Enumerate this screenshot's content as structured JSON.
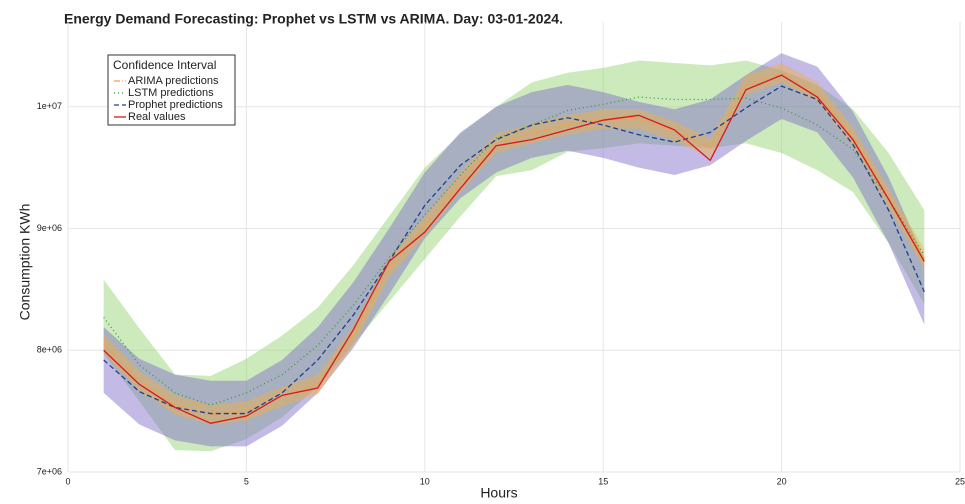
{
  "chart_data": {
    "type": "line",
    "title": "Energy Demand Forecasting: Prophet vs LSTM vs ARIMA. Day: 03-01-2024.",
    "x_label": "Hours",
    "y_label": "Consumption KWh",
    "legend_title": "Confidence Interval",
    "legend": "top-left",
    "grid": true,
    "xlim": [
      0,
      25
    ],
    "xticks": [
      0,
      5,
      10,
      15,
      20,
      25
    ],
    "ylim": [
      7000000,
      10450000
    ],
    "yticks": [
      {
        "value": 7000000,
        "label": "7e+06"
      },
      {
        "value": 8000000,
        "label": "8e+06"
      },
      {
        "value": 9000000,
        "label": "9e+06"
      },
      {
        "value": 10000000,
        "label": "1e+07"
      }
    ],
    "x": [
      1,
      2,
      3,
      4,
      5,
      6,
      7,
      8,
      9,
      10,
      11,
      12,
      13,
      14,
      15,
      16,
      17,
      18,
      19,
      20,
      21,
      22,
      23,
      24
    ],
    "series": [
      {
        "name": "ARIMA predictions",
        "color": "#f0a050",
        "dash": "6 2 1 2",
        "band_color": "#f5b041",
        "values": [
          8050000,
          7750000,
          7550000,
          7470000,
          7500000,
          7620000,
          7720000,
          8120000,
          8680000,
          9020000,
          9380000,
          9700000,
          9780000,
          9850000,
          9900000,
          9900000,
          9800000,
          9660000,
          10180000,
          10280000,
          10120000,
          9750000,
          9250000,
          8750000
        ],
        "lower": [
          7970000,
          7670000,
          7470000,
          7390000,
          7420000,
          7540000,
          7640000,
          8040000,
          8600000,
          8940000,
          9300000,
          9620000,
          9700000,
          9770000,
          9820000,
          9820000,
          9720000,
          9580000,
          10100000,
          10200000,
          10040000,
          9670000,
          9170000,
          8670000
        ],
        "upper": [
          8130000,
          7830000,
          7630000,
          7550000,
          7580000,
          7700000,
          7800000,
          8200000,
          8760000,
          9100000,
          9460000,
          9780000,
          9860000,
          9930000,
          9980000,
          9980000,
          9880000,
          9740000,
          10260000,
          10360000,
          10200000,
          9830000,
          9330000,
          8830000
        ]
      },
      {
        "name": "LSTM predictions",
        "color": "#3a9a3a",
        "dash": "1 3",
        "band_color": "#8fd16a",
        "values": [
          8270000,
          7880000,
          7650000,
          7550000,
          7650000,
          7800000,
          8040000,
          8370000,
          8760000,
          9110000,
          9440000,
          9740000,
          9850000,
          9970000,
          10020000,
          10080000,
          10060000,
          10060000,
          10070000,
          9990000,
          9850000,
          9650000,
          9240000,
          8780000
        ],
        "lower": [
          7970000,
          7580000,
          7180000,
          7170000,
          7270000,
          7450000,
          7700000,
          8050000,
          8400000,
          8750000,
          9100000,
          9430000,
          9480000,
          9630000,
          9660000,
          9700000,
          9680000,
          9660000,
          9700000,
          9620000,
          9480000,
          9300000,
          8880000,
          8380000
        ],
        "upper": [
          8580000,
          8180000,
          7800000,
          7790000,
          7930000,
          8120000,
          8350000,
          8700000,
          9100000,
          9500000,
          9780000,
          10000000,
          10200000,
          10280000,
          10320000,
          10380000,
          10360000,
          10340000,
          10380000,
          10300000,
          10180000,
          9980000,
          9620000,
          9150000
        ]
      },
      {
        "name": "Prophet predictions",
        "color": "#1f3f8f",
        "dash": "5 3",
        "band_color": "#7b68c8",
        "values": [
          7920000,
          7660000,
          7530000,
          7480000,
          7480000,
          7650000,
          7920000,
          8290000,
          8730000,
          9190000,
          9520000,
          9730000,
          9850000,
          9910000,
          9850000,
          9770000,
          9710000,
          9790000,
          9990000,
          10170000,
          10060000,
          9690000,
          9150000,
          8480000
        ],
        "lower": [
          7650000,
          7390000,
          7260000,
          7210000,
          7210000,
          7380000,
          7650000,
          8020000,
          8460000,
          8920000,
          9250000,
          9460000,
          9580000,
          9640000,
          9580000,
          9500000,
          9440000,
          9520000,
          9720000,
          9900000,
          9790000,
          9420000,
          8880000,
          8210000
        ],
        "upper": [
          8190000,
          7930000,
          7800000,
          7750000,
          7750000,
          7920000,
          8190000,
          8560000,
          9000000,
          9460000,
          9790000,
          10000000,
          10120000,
          10180000,
          10120000,
          10040000,
          9980000,
          10060000,
          10260000,
          10440000,
          10330000,
          9960000,
          9420000,
          8750000
        ]
      },
      {
        "name": "Real values",
        "color": "#d7191c",
        "dash": "none",
        "values": [
          8000000,
          7720000,
          7530000,
          7400000,
          7460000,
          7630000,
          7690000,
          8170000,
          8730000,
          8970000,
          9330000,
          9680000,
          9730000,
          9810000,
          9890000,
          9930000,
          9810000,
          9560000,
          10140000,
          10260000,
          10080000,
          9730000,
          9240000,
          8730000
        ]
      }
    ]
  }
}
